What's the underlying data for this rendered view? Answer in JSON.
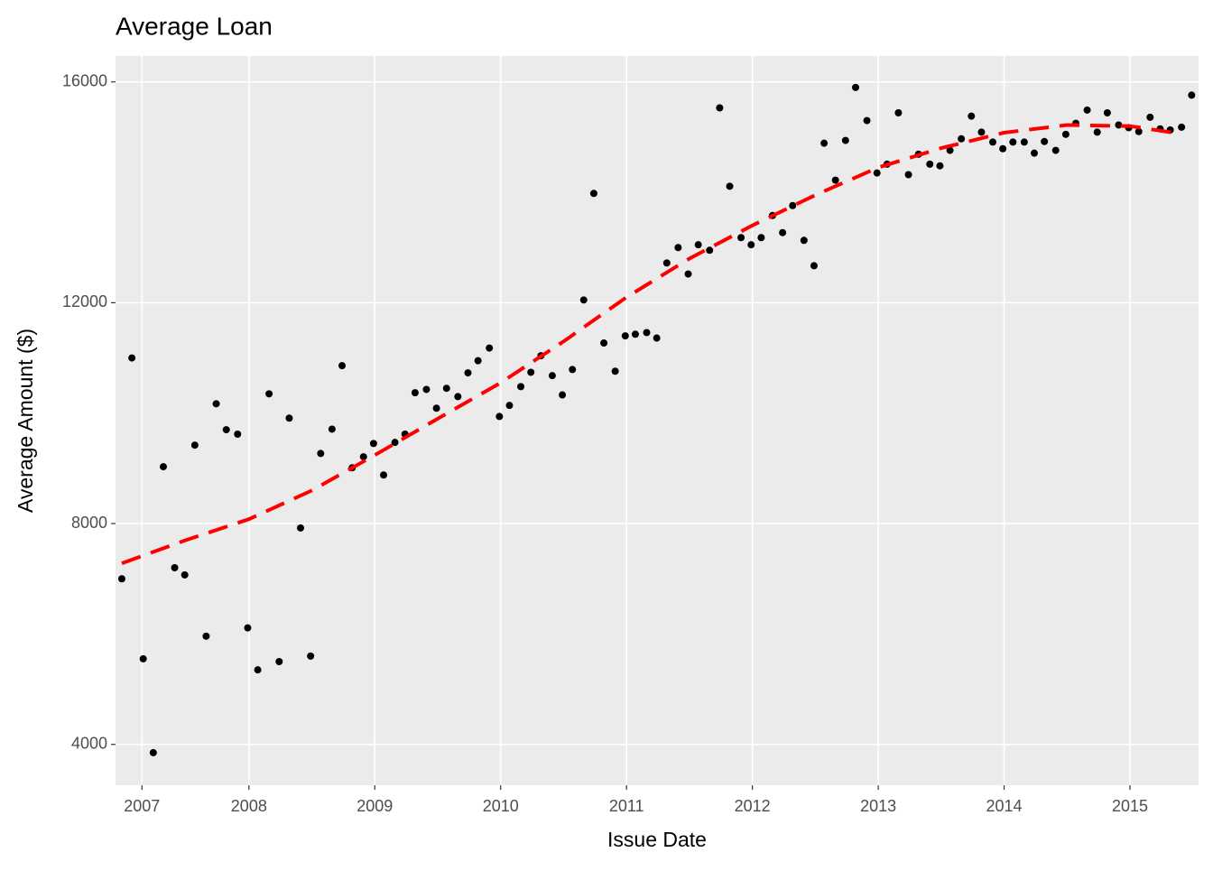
{
  "chart_data": {
    "type": "scatter",
    "title": "Average Loan",
    "x_label": "Issue Date",
    "y_label": "Average Amount ($)",
    "x": [
      2006.99,
      2007.07,
      2007.16,
      2007.24,
      2007.32,
      2007.41,
      2007.49,
      2007.57,
      2007.66,
      2007.74,
      2007.82,
      2007.91,
      2007.99,
      2008.07,
      2008.16,
      2008.24,
      2008.32,
      2008.41,
      2008.49,
      2008.57,
      2008.66,
      2008.74,
      2008.82,
      2008.91,
      2008.99,
      2009.07,
      2009.16,
      2009.24,
      2009.32,
      2009.41,
      2009.49,
      2009.57,
      2009.66,
      2009.74,
      2009.82,
      2009.91,
      2009.99,
      2010.07,
      2010.16,
      2010.24,
      2010.32,
      2010.41,
      2010.49,
      2010.57,
      2010.66,
      2010.74,
      2010.82,
      2010.91,
      2010.99,
      2011.07,
      2011.16,
      2011.24,
      2011.32,
      2011.41,
      2011.49,
      2011.57,
      2011.66,
      2011.74,
      2011.82,
      2011.91,
      2011.99,
      2012.07,
      2012.16,
      2012.24,
      2012.32,
      2012.41,
      2012.49,
      2012.57,
      2012.66,
      2012.74,
      2012.82,
      2012.91,
      2012.99,
      2013.07,
      2013.16,
      2013.24,
      2013.32,
      2013.41,
      2013.49,
      2013.57,
      2013.66,
      2013.74,
      2013.82,
      2013.91,
      2013.99,
      2014.07,
      2014.16,
      2014.24,
      2014.32,
      2014.41,
      2014.49,
      2014.57,
      2014.66,
      2014.74,
      2014.82,
      2014.91,
      2014.99,
      2015.07,
      2015.16,
      2015.24,
      2015.32,
      2015.41,
      2015.49
    ],
    "values": [
      7000,
      11000,
      5550,
      3850,
      9030,
      7200,
      7070,
      9420,
      5960,
      10170,
      9700,
      9620,
      6110,
      5350,
      10350,
      5500,
      9910,
      7920,
      5600,
      9270,
      9710,
      10860,
      9010,
      9210,
      9450,
      8880,
      9470,
      9620,
      10370,
      10430,
      10090,
      10450,
      10300,
      10730,
      10950,
      11180,
      9940,
      10140,
      10480,
      10740,
      11040,
      10680,
      10330,
      10790,
      12050,
      13980,
      11270,
      10760,
      11400,
      11430,
      11460,
      11360,
      12720,
      13000,
      12520,
      13050,
      12950,
      15530,
      14110,
      13180,
      13050,
      13180,
      13580,
      13270,
      13760,
      13130,
      12670,
      14890,
      14220,
      14940,
      15900,
      15300,
      14350,
      14510,
      15440,
      14320,
      14690,
      14510,
      14480,
      14760,
      14970,
      15380,
      15090,
      14910,
      14790,
      14910,
      14910,
      14710,
      14920,
      14760,
      15050,
      15250,
      15490,
      15090,
      15440,
      15220,
      15170,
      15100,
      15360,
      15150,
      15130,
      15180,
      15760
    ],
    "color": "#000000",
    "trend": {
      "color": "#ff0000",
      "x": [
        2006.99,
        2007.5,
        2008,
        2008.5,
        2009,
        2009.5,
        2010,
        2010.5,
        2011,
        2011.5,
        2012,
        2012.5,
        2013,
        2013.5,
        2014,
        2014.5,
        2015,
        2015.4
      ],
      "values": [
        7280,
        7700,
        8080,
        8600,
        9240,
        9900,
        10550,
        11300,
        12100,
        12800,
        13400,
        13950,
        14450,
        14800,
        15080,
        15220,
        15200,
        15060
      ]
    },
    "xlim": [
      2006.94,
      2015.545
    ],
    "ylim": [
      3260,
      16470
    ],
    "xticks": [
      {
        "value": 2007.15,
        "label": "2007"
      },
      2008,
      2009,
      2010,
      2011,
      2012,
      2013,
      2014,
      2015
    ],
    "yticks": [
      4000,
      8000,
      12000,
      16000
    ],
    "grid": true
  }
}
